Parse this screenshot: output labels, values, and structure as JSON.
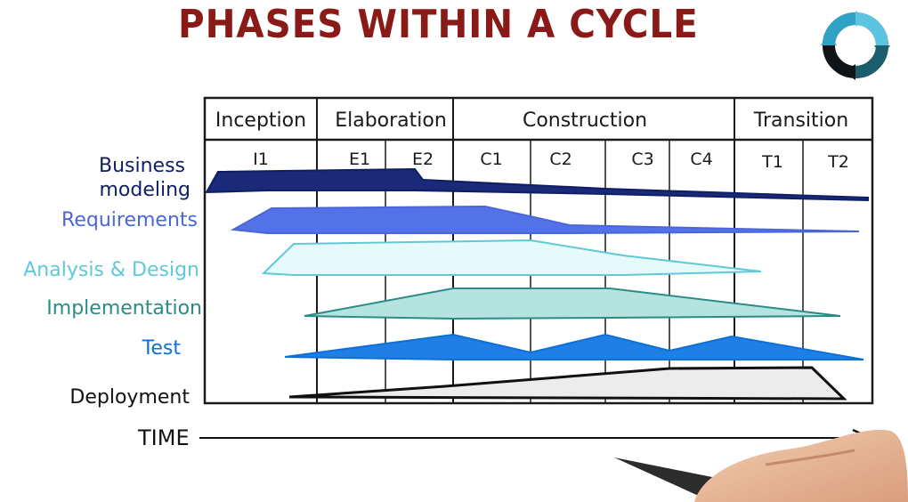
{
  "title": "PHASES WITHIN A CYCLE",
  "logo": "cycle-arrows-icon",
  "phases": [
    "Inception",
    "Elaboration",
    "Construction",
    "Transition"
  ],
  "iterations": [
    "I1",
    "E1",
    "E2",
    "C1",
    "C2",
    "C3",
    "C4",
    "T1",
    "T2"
  ],
  "disciplines": [
    {
      "label_lines": [
        "Business",
        "modeling"
      ],
      "color": "#0f1f63"
    },
    {
      "label_lines": [
        "Requirements"
      ],
      "color": "#4a67d8"
    },
    {
      "label_lines": [
        "Analysis & Design"
      ],
      "color": "#5fc9d8"
    },
    {
      "label_lines": [
        "Implementation"
      ],
      "color": "#2b8b87"
    },
    {
      "label_lines": [
        "Test"
      ],
      "color": "#0e6fd4"
    },
    {
      "label_lines": [
        "Deployment"
      ],
      "color": "#111111"
    }
  ],
  "axis_label": "TIME",
  "colors": {
    "title": "#8a1a17",
    "grid": "#1a1a1a",
    "business_fill": "#1a2a78",
    "requirements_fill": "#5472e8",
    "analysis_fill": "#e6fafc",
    "implementation_fill": "#b5e3df",
    "test_fill": "#1f7fe6",
    "deployment_fill": "#ececec"
  }
}
